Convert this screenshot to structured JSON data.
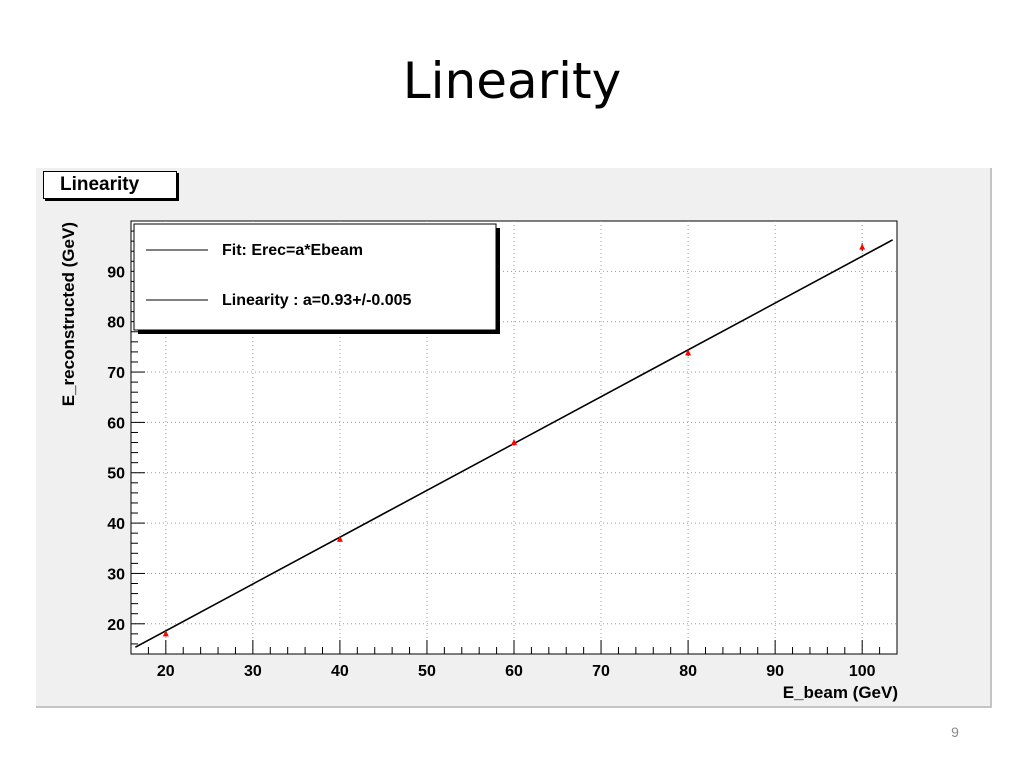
{
  "slide": {
    "title": "Linearity",
    "page_number": "9"
  },
  "chart_data": {
    "type": "scatter",
    "title": "Linearity",
    "xlabel": "E_beam (GeV)",
    "ylabel": "E_reconstructed (GeV)",
    "xlim": [
      16,
      104
    ],
    "ylim": [
      14,
      100
    ],
    "xticks": [
      20,
      30,
      40,
      50,
      60,
      70,
      80,
      90,
      100
    ],
    "yticks": [
      20,
      30,
      40,
      50,
      60,
      70,
      80,
      90
    ],
    "grid": true,
    "legend_position": "top-left",
    "points": {
      "x": [
        20,
        40,
        60,
        80,
        100
      ],
      "y": [
        18.0,
        36.8,
        56.0,
        73.8,
        94.8
      ],
      "yerr": [
        0.5,
        0.5,
        0.6,
        0.6,
        0.8
      ],
      "color": "#ff0000"
    },
    "fit": {
      "slope": 0.93,
      "x_range": [
        16.5,
        103.5
      ],
      "color": "#000000"
    },
    "legend": [
      "Fit: Erec=a*Ebeam",
      "Linearity : a=0.93+/-0.005"
    ]
  }
}
